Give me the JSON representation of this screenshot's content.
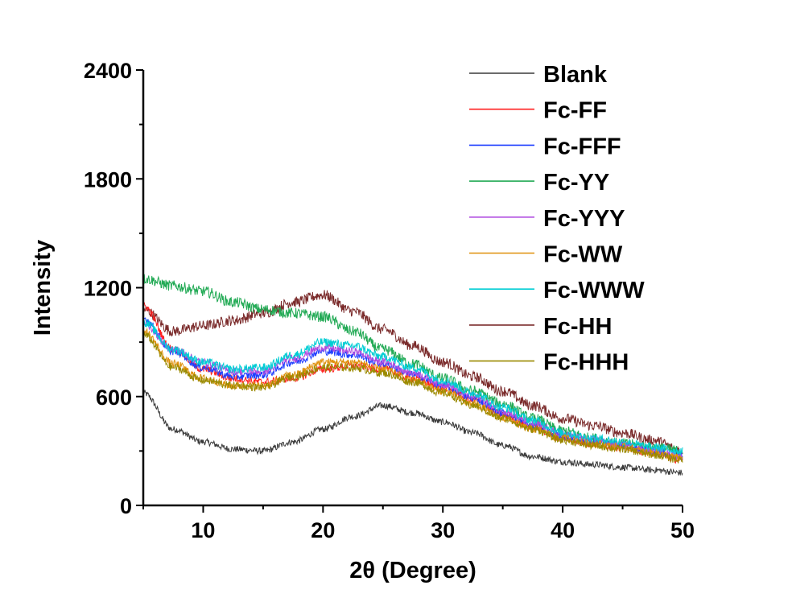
{
  "chart_data": {
    "type": "line",
    "title": "",
    "xlabel": "2θ (Degree)",
    "ylabel": "Intensity",
    "xlim": [
      5,
      50
    ],
    "ylim": [
      0,
      2400
    ],
    "xticks": [
      10,
      20,
      30,
      40,
      50
    ],
    "yticks": [
      0,
      600,
      1200,
      1800,
      2400
    ],
    "grid": false,
    "legend_position": "top-right",
    "x": [
      5,
      7.5,
      10,
      12.5,
      15,
      17.5,
      20,
      22.5,
      25,
      27.5,
      30,
      32.5,
      35,
      37.5,
      40,
      42.5,
      45,
      47.5,
      50
    ],
    "series": [
      {
        "name": "Blank",
        "color": "#3a3a3a",
        "noise": 18,
        "values": [
          620,
          420,
          350,
          310,
          300,
          350,
          420,
          490,
          550,
          510,
          460,
          400,
          330,
          270,
          240,
          225,
          210,
          195,
          180
        ]
      },
      {
        "name": "Fc-FF",
        "color": "#ff2020",
        "noise": 22,
        "values": [
          1100,
          860,
          750,
          700,
          680,
          700,
          750,
          770,
          750,
          700,
          650,
          580,
          500,
          430,
          370,
          340,
          320,
          290,
          250
        ]
      },
      {
        "name": "Fc-FFF",
        "color": "#1f3fff",
        "noise": 22,
        "values": [
          1030,
          850,
          760,
          710,
          720,
          790,
          850,
          830,
          780,
          720,
          660,
          590,
          510,
          440,
          380,
          350,
          330,
          300,
          270
        ]
      },
      {
        "name": "Fc-YY",
        "color": "#22aa55",
        "noise": 30,
        "values": [
          1250,
          1210,
          1180,
          1120,
          1080,
          1060,
          1040,
          960,
          860,
          780,
          700,
          630,
          560,
          480,
          410,
          370,
          340,
          320,
          300
        ]
      },
      {
        "name": "Fc-YYY",
        "color": "#b04ee0",
        "noise": 22,
        "values": [
          1000,
          860,
          790,
          740,
          740,
          810,
          870,
          850,
          790,
          730,
          670,
          600,
          520,
          450,
          390,
          360,
          330,
          300,
          270
        ]
      },
      {
        "name": "Fc-WW",
        "color": "#e0900a",
        "noise": 22,
        "values": [
          960,
          780,
          700,
          660,
          660,
          720,
          790,
          790,
          750,
          690,
          630,
          560,
          480,
          420,
          370,
          340,
          320,
          290,
          260
        ]
      },
      {
        "name": "Fc-WWW",
        "color": "#00cdd4",
        "noise": 24,
        "values": [
          1010,
          860,
          790,
          750,
          760,
          830,
          900,
          880,
          820,
          760,
          690,
          620,
          540,
          470,
          400,
          370,
          350,
          320,
          300
        ]
      },
      {
        "name": "Fc-HH",
        "color": "#7a2a2a",
        "noise": 30,
        "values": [
          1080,
          960,
          990,
          1020,
          1060,
          1120,
          1160,
          1070,
          970,
          880,
          790,
          710,
          630,
          550,
          480,
          440,
          400,
          360,
          300
        ]
      },
      {
        "name": "Fc-HHH",
        "color": "#9a8a00",
        "noise": 22,
        "values": [
          940,
          760,
          690,
          660,
          650,
          710,
          760,
          760,
          730,
          680,
          620,
          550,
          480,
          420,
          360,
          330,
          310,
          280,
          250
        ]
      }
    ]
  }
}
